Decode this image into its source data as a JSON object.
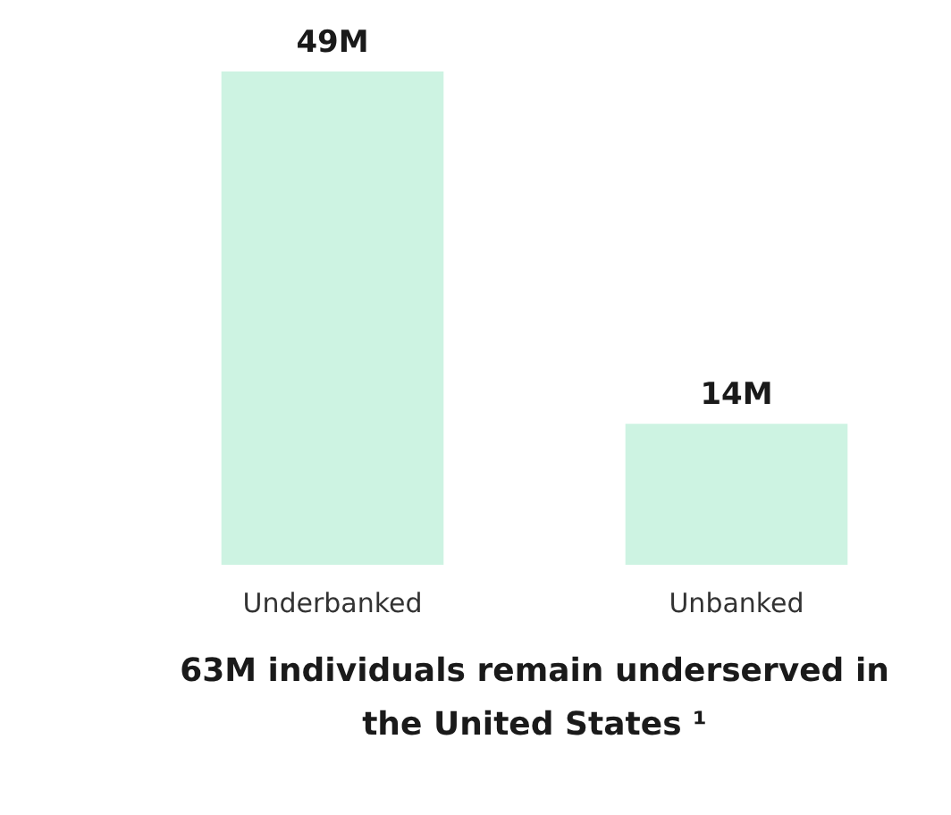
{
  "chart_data": {
    "type": "bar",
    "title": "63M individuals remain underserved in the United States ¹",
    "categories": [
      "Underbanked",
      "Unbanked"
    ],
    "values": [
      49,
      14
    ],
    "value_labels": [
      "49M",
      "14M"
    ],
    "color": "#cdf3e2",
    "grid": false
  }
}
